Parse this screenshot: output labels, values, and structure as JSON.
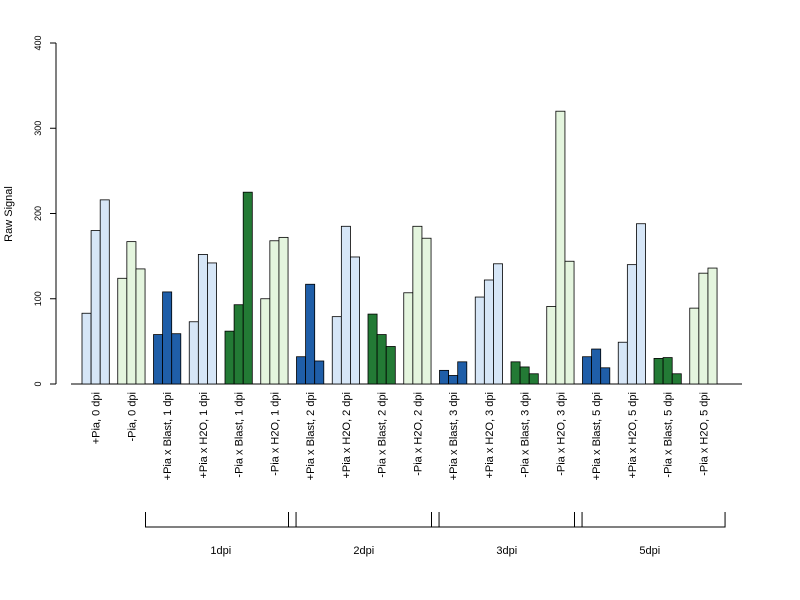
{
  "chart_data": {
    "type": "bar",
    "ylabel": "Raw Signal",
    "ylim": [
      0,
      400
    ],
    "yticks": [
      "0",
      "100",
      "200",
      "300",
      "400"
    ],
    "grid": false,
    "categories": [
      "+Pia, 0 dpi",
      "-Pia, 0 dpi",
      "+Pia x Blast, 1 dpi",
      "+Pia x H2O, 1 dpi",
      "-Pia x Blast, 1 dpi",
      "-Pia x H2O, 1 dpi",
      "+Pia x Blast, 2 dpi",
      "+Pia x H2O, 2 dpi",
      "-Pia x Blast, 2 dpi",
      "-Pia x H2O, 2 dpi",
      "+Pia x Blast, 3 dpi",
      "+Pia x H2O, 3 dpi",
      "-Pia x Blast, 3 dpi",
      "-Pia x H2O, 3 dpi",
      "+Pia x Blast, 5 dpi",
      "+Pia x H2O, 5 dpi",
      "-Pia x Blast, 5 dpi",
      "-Pia x H2O, 5 dpi"
    ],
    "replicates_per_group": 3,
    "values": [
      [
        83,
        180,
        216
      ],
      [
        124,
        167,
        135
      ],
      [
        58,
        108,
        59
      ],
      [
        73,
        152,
        142
      ],
      [
        62,
        93,
        225
      ],
      [
        100,
        168,
        172
      ],
      [
        32,
        117,
        27
      ],
      [
        79,
        185,
        149
      ],
      [
        82,
        58,
        44
      ],
      [
        107,
        185,
        171
      ],
      [
        16,
        10,
        26
      ],
      [
        102,
        122,
        141
      ],
      [
        26,
        20,
        12
      ],
      [
        91,
        320,
        144
      ],
      [
        32,
        41,
        19
      ],
      [
        49,
        140,
        188
      ],
      [
        30,
        31,
        12
      ],
      [
        89,
        130,
        136
      ]
    ],
    "group_colors": [
      "#d6e6f7",
      "#e4f5de",
      "#1f5ea8",
      "#d6e6f7",
      "#237a35",
      "#e4f5de",
      "#1f5ea8",
      "#d6e6f7",
      "#237a35",
      "#e4f5de",
      "#1f5ea8",
      "#d6e6f7",
      "#237a35",
      "#e4f5de",
      "#1f5ea8",
      "#d6e6f7",
      "#237a35",
      "#e4f5de"
    ],
    "time_groups": [
      {
        "label": "1dpi",
        "from": 2,
        "to": 5
      },
      {
        "label": "2dpi",
        "from": 6,
        "to": 9
      },
      {
        "label": "3dpi",
        "from": 10,
        "to": 13
      },
      {
        "label": "5dpi",
        "from": 14,
        "to": 17
      }
    ]
  }
}
